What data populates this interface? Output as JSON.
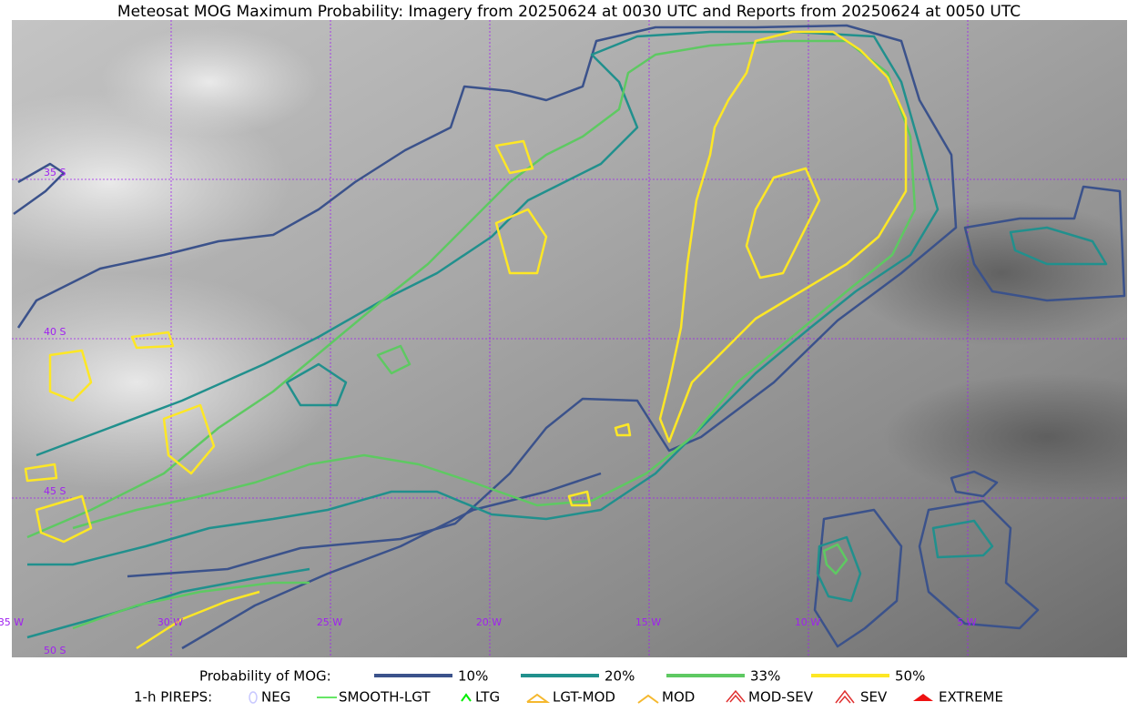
{
  "title": "Meteosat MOG Maximum Probability: Imagery from 20250624 at 0030 UTC and Reports from 20250624 at 0050 UTC",
  "map": {
    "lat_labels": [
      "35 S",
      "40 S",
      "45 S",
      "50 S"
    ],
    "lon_labels": [
      "35 W",
      "30 W",
      "25 W",
      "20 W",
      "15 W",
      "10 W",
      "5 W"
    ]
  },
  "legend": {
    "probability": {
      "label": "Probability of MOG:",
      "items": [
        {
          "label": "10%",
          "color": "#3b528b"
        },
        {
          "label": "20%",
          "color": "#21908d"
        },
        {
          "label": "33%",
          "color": "#5ec962"
        },
        {
          "label": "50%",
          "color": "#fde725"
        }
      ]
    },
    "pireps": {
      "label": "1-h PIREPS:",
      "items": [
        {
          "label": "NEG",
          "color": "#c8c8ff"
        },
        {
          "label": "SMOOTH-LGT",
          "color": "#33dd33"
        },
        {
          "label": "LTG",
          "color": "#00ee00"
        },
        {
          "label": "LGT-MOD",
          "color": "#f5b82e"
        },
        {
          "label": "MOD",
          "color": "#f5b82e"
        },
        {
          "label": "MOD-SEV",
          "color": "#e03030"
        },
        {
          "label": "SEV",
          "color": "#e03030"
        },
        {
          "label": "EXTREME",
          "color": "#ee1111"
        }
      ]
    }
  }
}
